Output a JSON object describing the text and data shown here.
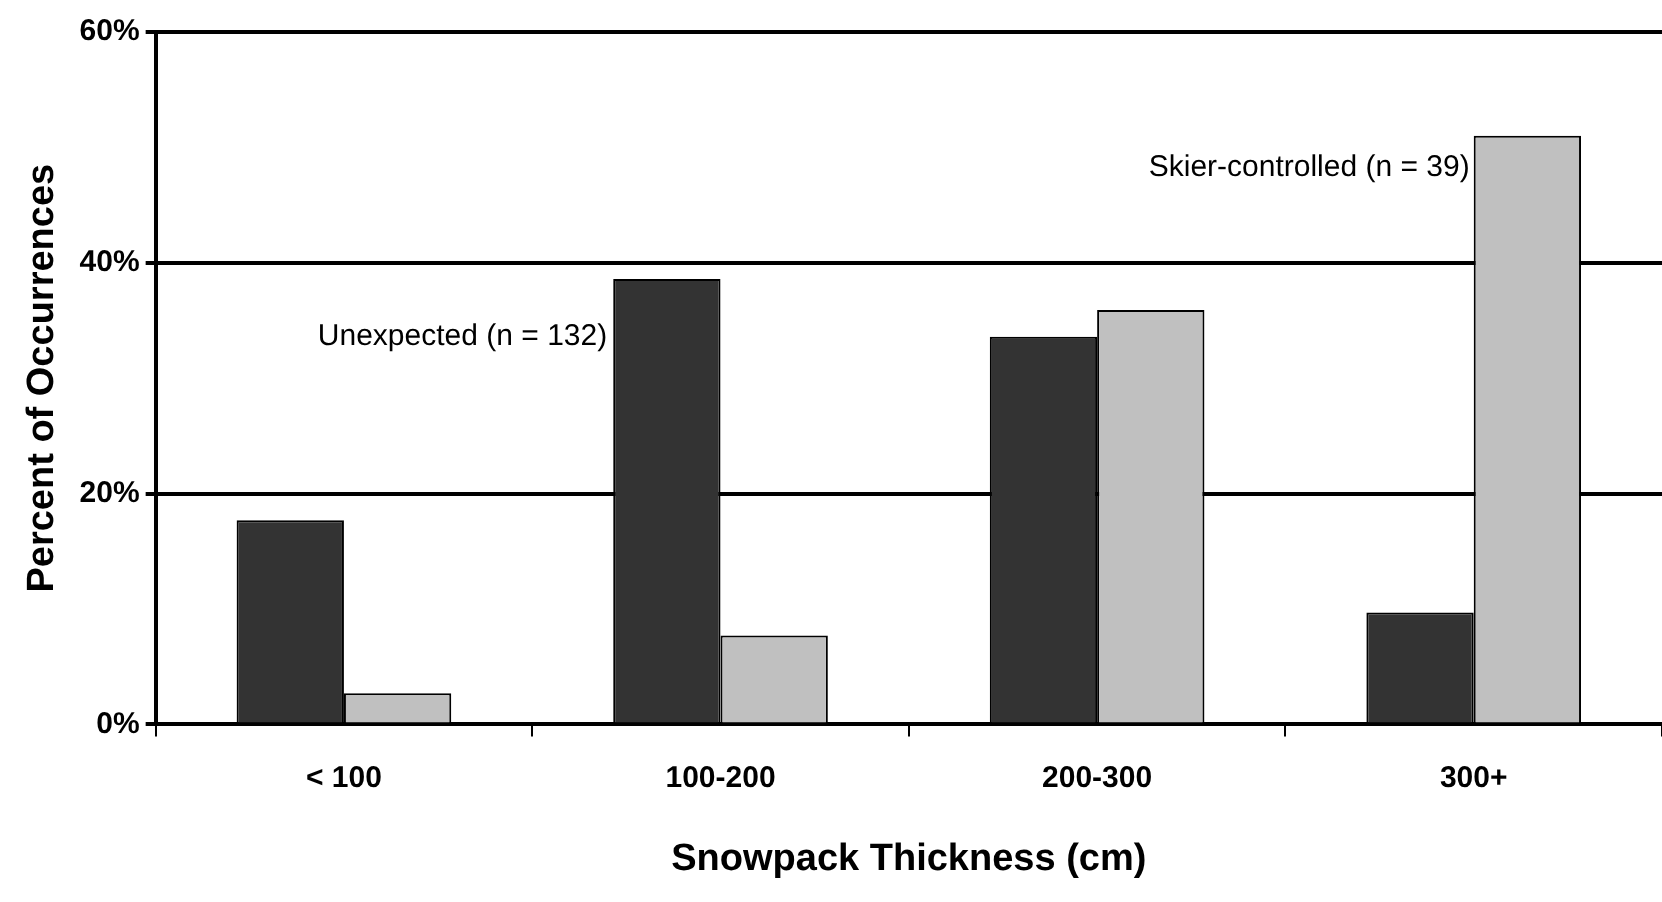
{
  "chart_data": {
    "type": "bar",
    "xlabel": "Snowpack Thickness (cm)",
    "ylabel": "Percent of Occurrences",
    "categories": [
      "< 100",
      "100-200",
      "200-300",
      "300+"
    ],
    "series": [
      {
        "name": "Unexpected (n = 132)",
        "color": "#333333",
        "values": [
          17.7,
          38.6,
          33.6,
          9.7
        ]
      },
      {
        "name": "Skier-controlled (n = 39)",
        "color": "#c0c0c0",
        "values": [
          2.7,
          7.7,
          35.9,
          51.0
        ]
      }
    ],
    "ylim": [
      0,
      60
    ],
    "yticks": [
      {
        "value": 0,
        "label": "0%"
      },
      {
        "value": 20,
        "label": "20%"
      },
      {
        "value": 40,
        "label": "40%"
      },
      {
        "value": 60,
        "label": "60%"
      }
    ],
    "grid": "y",
    "legend": false
  }
}
